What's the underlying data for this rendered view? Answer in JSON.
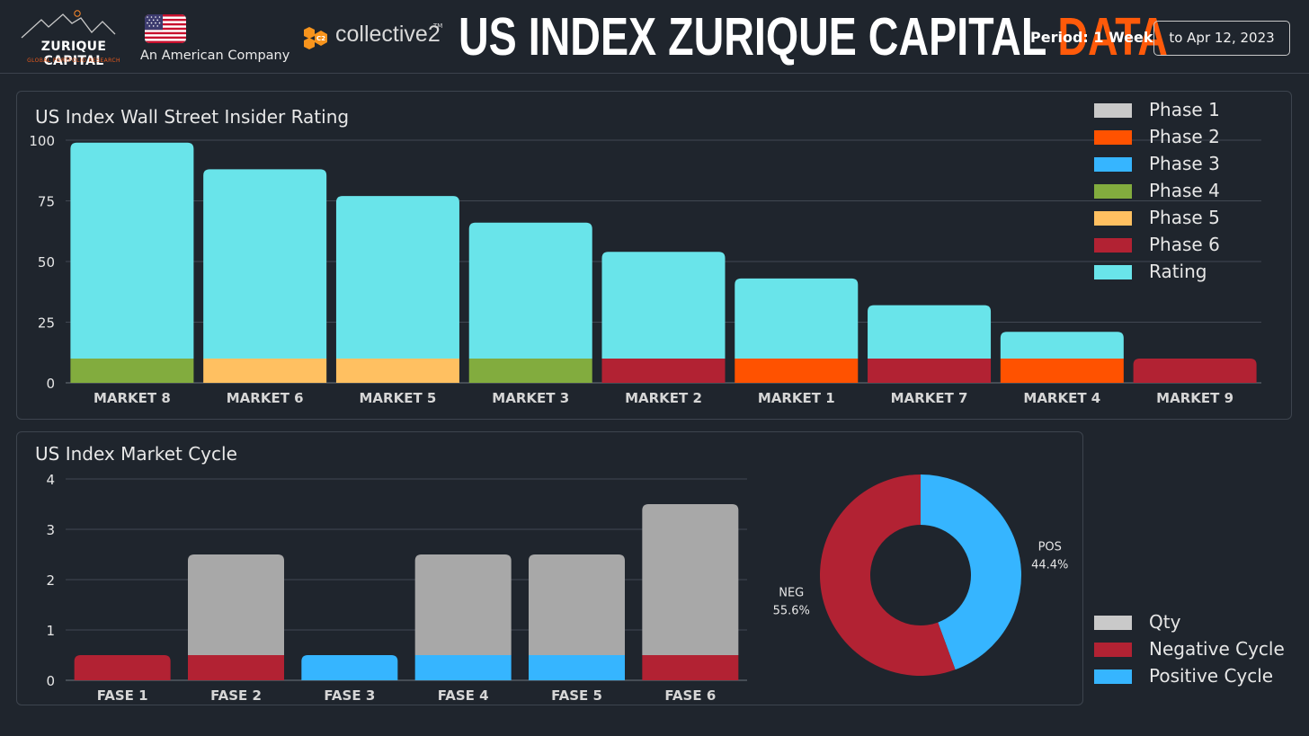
{
  "header": {
    "logo_name": "ZURIQUE CAPITAL",
    "logo_sub": "GLOBAL PORTFOLIO RESEARCH",
    "company": "An American Company",
    "partner": "collective2",
    "partner_tm": "TM",
    "title_main": "US INDEX ZURIQUE CAPITAL ",
    "title_accent": "DATA",
    "period_label": "Period: 1 Week",
    "date_range": "to Apr 12, 2023"
  },
  "colors": {
    "background": "#1f252d",
    "accent": "#ff5a0a",
    "phase1": "#c9c9c9",
    "phase2": "#ff5200",
    "phase3": "#36b5ff",
    "phase4": "#82ac3e",
    "phase5": "#ffc061",
    "phase6": "#b22233",
    "rating": "#69e4ea",
    "qty": "#a8a8a8"
  },
  "chart_data": [
    {
      "type": "bar",
      "title": "US Index Wall Street Insider Rating",
      "stacked": true,
      "categories": [
        "MARKET 8",
        "MARKET 6",
        "MARKET 5",
        "MARKET 3",
        "MARKET 2",
        "MARKET 1",
        "MARKET 7",
        "MARKET 4",
        "MARKET 9"
      ],
      "phase_by_category": [
        "Phase 4",
        "Phase 5",
        "Phase 5",
        "Phase 4",
        "Phase 6",
        "Phase 2",
        "Phase 6",
        "Phase 2",
        "Phase 6"
      ],
      "series": [
        {
          "name": "Phase 1",
          "values": [
            0,
            0,
            0,
            0,
            0,
            0,
            0,
            0,
            0
          ]
        },
        {
          "name": "Phase 2",
          "values": [
            0,
            0,
            0,
            0,
            0,
            10,
            0,
            10,
            0
          ]
        },
        {
          "name": "Phase 3",
          "values": [
            0,
            0,
            0,
            0,
            0,
            0,
            0,
            0,
            0
          ]
        },
        {
          "name": "Phase 4",
          "values": [
            10,
            0,
            0,
            10,
            0,
            0,
            0,
            0,
            0
          ]
        },
        {
          "name": "Phase 5",
          "values": [
            0,
            10,
            10,
            0,
            0,
            0,
            0,
            0,
            0
          ]
        },
        {
          "name": "Phase 6",
          "values": [
            0,
            0,
            0,
            0,
            10,
            0,
            10,
            0,
            10
          ]
        },
        {
          "name": "Rating",
          "values": [
            89,
            78,
            67,
            56,
            44,
            33,
            22,
            11,
            0
          ]
        }
      ],
      "yticks": [
        "0",
        "25",
        "50",
        "75",
        "100"
      ],
      "ylim": [
        0,
        100
      ],
      "grid": true,
      "legend": "top-right"
    },
    {
      "type": "bar",
      "title": "US Index Market Cycle",
      "stacked": true,
      "categories": [
        "FASE 1",
        "FASE 2",
        "FASE 3",
        "FASE 4",
        "FASE 5",
        "FASE 6"
      ],
      "series": [
        {
          "name": "Negative Cycle",
          "values": [
            0.5,
            0.5,
            0,
            0,
            0,
            0.5
          ]
        },
        {
          "name": "Positive Cycle",
          "values": [
            0,
            0,
            0.5,
            0.5,
            0.5,
            0
          ]
        },
        {
          "name": "Qty",
          "values": [
            0,
            2,
            0,
            2,
            2,
            3
          ]
        }
      ],
      "yticks": [
        "0",
        "1",
        "2",
        "3",
        "4"
      ],
      "ylim": [
        0,
        4
      ],
      "grid": true,
      "legend": "bottom-right"
    },
    {
      "type": "pie",
      "donut": true,
      "slices": [
        {
          "label": "POS",
          "percent_label": "44.4%",
          "value": 44.4
        },
        {
          "label": "NEG",
          "percent_label": "55.6%",
          "value": 55.6
        }
      ]
    }
  ],
  "legend_top": [
    {
      "label": "Phase 1",
      "color": "#c9c9c9"
    },
    {
      "label": "Phase 2",
      "color": "#ff5200"
    },
    {
      "label": "Phase 3",
      "color": "#36b5ff"
    },
    {
      "label": "Phase 4",
      "color": "#82ac3e"
    },
    {
      "label": "Phase 5",
      "color": "#ffc061"
    },
    {
      "label": "Phase 6",
      "color": "#b22233"
    },
    {
      "label": "Rating",
      "color": "#69e4ea"
    }
  ],
  "legend_bottom": [
    {
      "label": "Qty",
      "color": "#c9c9c9"
    },
    {
      "label": "Negative Cycle",
      "color": "#b22233"
    },
    {
      "label": "Positive Cycle",
      "color": "#36b5ff"
    }
  ]
}
